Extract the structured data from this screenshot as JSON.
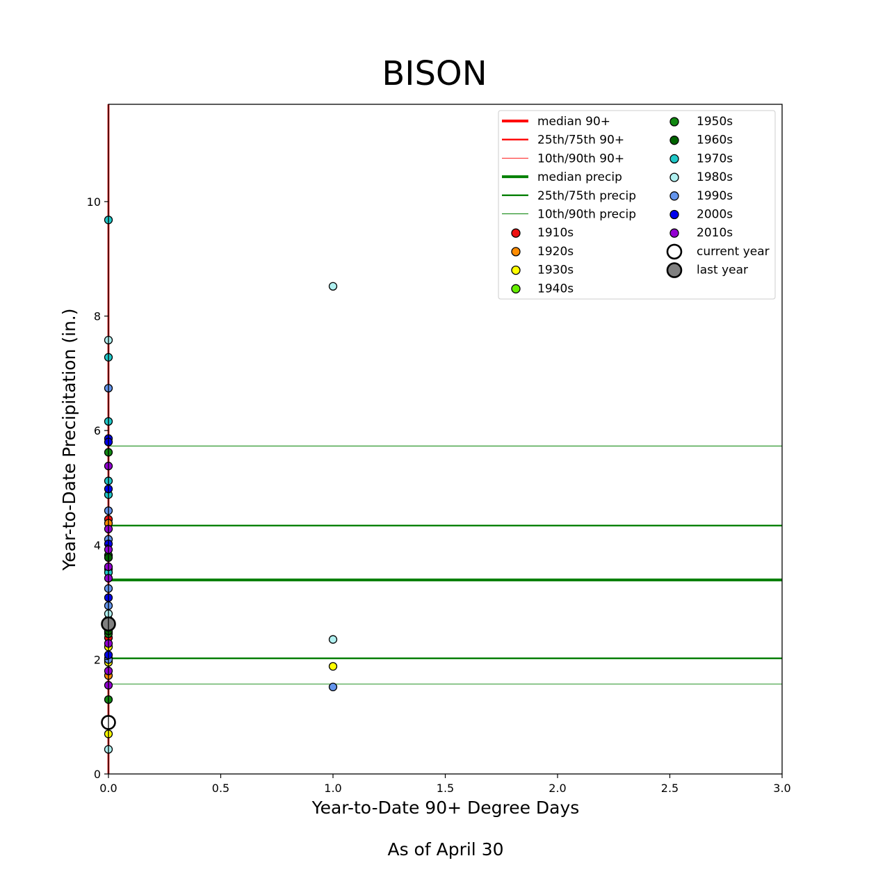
{
  "chart_data": {
    "type": "scatter",
    "title": "BISON",
    "xlabel": "Year-to-Date 90+ Degree Days",
    "ylabel": "Year-to-Date Precipitation (in.)",
    "footer": "As of April 30",
    "xlim": [
      0,
      3
    ],
    "ylim": [
      0,
      11.7
    ],
    "xticks": [
      0,
      0.5,
      1,
      1.5,
      2,
      2.5,
      3
    ],
    "xtick_labels": [
      "0.0",
      "0.5",
      "1.0",
      "1.5",
      "2.0",
      "2.5",
      "3.0"
    ],
    "yticks": [
      0,
      2,
      4,
      6,
      8,
      10
    ],
    "ytick_labels": [
      "0",
      "2",
      "4",
      "6",
      "8",
      "10"
    ],
    "grid": false,
    "legend_position": "top-right",
    "heat_lines": {
      "color": "#ff0000",
      "median": 0,
      "p25_75": [
        0,
        0
      ],
      "p10_90": [
        0,
        0
      ]
    },
    "precip_lines": {
      "color": "#008000",
      "median": 3.39,
      "p25_75": [
        2.02,
        4.34
      ],
      "p10_90": [
        1.57,
        5.73
      ]
    },
    "decade_colors": {
      "1910s": "#ee1111",
      "1920s": "#ff8c00",
      "1930s": "#ffff00",
      "1940s": "#66ee00",
      "1950s": "#118811",
      "1960s": "#006400",
      "1970s": "#20c8c8",
      "1980s": "#b0f0f0",
      "1990s": "#6495ed",
      "2000s": "#0000ee",
      "2010s": "#9400d3"
    },
    "legend": [
      {
        "label": "median 90+",
        "kind": "line",
        "color": "#ff0000",
        "weight": "median"
      },
      {
        "label": "25th/75th 90+",
        "kind": "line",
        "color": "#ff0000",
        "weight": "quartile"
      },
      {
        "label": "10th/90th 90+",
        "kind": "line",
        "color": "#ff0000",
        "weight": "decile"
      },
      {
        "label": "median precip",
        "kind": "line",
        "color": "#008000",
        "weight": "median"
      },
      {
        "label": "25th/75th precip",
        "kind": "line",
        "color": "#008000",
        "weight": "quartile"
      },
      {
        "label": "10th/90th precip",
        "kind": "line",
        "color": "#008000",
        "weight": "decile"
      },
      {
        "label": "1910s",
        "kind": "point",
        "color": "#ee1111"
      },
      {
        "label": "1920s",
        "kind": "point",
        "color": "#ff8c00"
      },
      {
        "label": "1930s",
        "kind": "point",
        "color": "#ffff00"
      },
      {
        "label": "1940s",
        "kind": "point",
        "color": "#66ee00"
      },
      {
        "label": "1950s",
        "kind": "point",
        "color": "#118811"
      },
      {
        "label": "1960s",
        "kind": "point",
        "color": "#006400"
      },
      {
        "label": "1970s",
        "kind": "point",
        "color": "#20c8c8"
      },
      {
        "label": "1980s",
        "kind": "point",
        "color": "#b0f0f0"
      },
      {
        "label": "1990s",
        "kind": "point",
        "color": "#6495ed"
      },
      {
        "label": "2000s",
        "kind": "point",
        "color": "#0000ee"
      },
      {
        "label": "2010s",
        "kind": "point",
        "color": "#9400d3"
      },
      {
        "label": "current year",
        "kind": "big-point",
        "color": "#ffffff"
      },
      {
        "label": "last year",
        "kind": "big-point",
        "color": "#808080"
      }
    ],
    "series": [
      {
        "name": "1910s",
        "points": [
          [
            0,
            4.45
          ],
          [
            0,
            2.38
          ],
          [
            0,
            1.98
          ]
        ]
      },
      {
        "name": "1920s",
        "points": [
          [
            0,
            4.38
          ],
          [
            0,
            2.48
          ],
          [
            0,
            1.72
          ]
        ]
      },
      {
        "name": "1930s",
        "points": [
          [
            0,
            2.22
          ],
          [
            0,
            0.7
          ],
          [
            1,
            1.88
          ],
          [
            0,
            1.95
          ]
        ]
      },
      {
        "name": "1940s",
        "points": [
          [
            0,
            3.58
          ],
          [
            0,
            2.62
          ]
        ]
      },
      {
        "name": "1950s",
        "points": [
          [
            0,
            5.62
          ],
          [
            0,
            1.3
          ],
          [
            0,
            3.82
          ],
          [
            0,
            2.45
          ]
        ]
      },
      {
        "name": "1960s",
        "points": [
          [
            0,
            3.78
          ],
          [
            0,
            2.5
          ],
          [
            0,
            2.02
          ]
        ]
      },
      {
        "name": "1970s",
        "points": [
          [
            0,
            9.68
          ],
          [
            0,
            7.28
          ],
          [
            0,
            6.16
          ],
          [
            0,
            5.12
          ],
          [
            0,
            4.88
          ],
          [
            0,
            3.52
          ],
          [
            0,
            2.68
          ]
        ]
      },
      {
        "name": "1980s",
        "points": [
          [
            0,
            7.58
          ],
          [
            1,
            8.52
          ],
          [
            1,
            2.35
          ],
          [
            0,
            0.43
          ],
          [
            0,
            2.7
          ],
          [
            0,
            2.8
          ]
        ]
      },
      {
        "name": "1990s",
        "points": [
          [
            0,
            6.74
          ],
          [
            0,
            4.6
          ],
          [
            0,
            4.1
          ],
          [
            0,
            3.24
          ],
          [
            0,
            2.94
          ],
          [
            1,
            1.52
          ],
          [
            0,
            2.0
          ]
        ]
      },
      {
        "name": "2000s",
        "points": [
          [
            0,
            5.86
          ],
          [
            0,
            5.8
          ],
          [
            0,
            4.98
          ],
          [
            0,
            4.02
          ],
          [
            0,
            3.08
          ],
          [
            0,
            2.08
          ],
          [
            0,
            2.58
          ]
        ]
      },
      {
        "name": "2010s",
        "points": [
          [
            0,
            5.38
          ],
          [
            0,
            4.28
          ],
          [
            0,
            3.92
          ],
          [
            0,
            3.62
          ],
          [
            0,
            3.42
          ],
          [
            0,
            1.8
          ],
          [
            0,
            1.55
          ],
          [
            0,
            2.28
          ]
        ]
      }
    ],
    "current_year": {
      "label": "current year",
      "x": 0,
      "y": 0.9,
      "color": "#ffffff"
    },
    "last_year": {
      "label": "last year",
      "x": 0,
      "y": 2.62,
      "color": "#808080"
    }
  }
}
